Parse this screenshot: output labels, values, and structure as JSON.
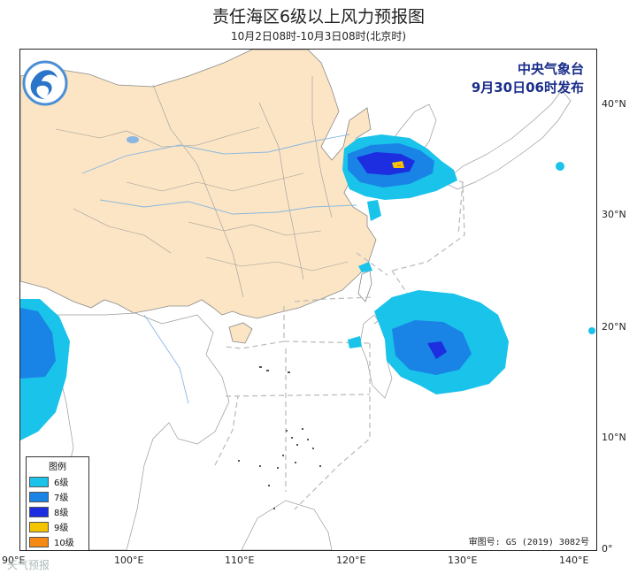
{
  "title": "责任海区6级以上风力预报图",
  "subtitle": "10月2日08时-10月3日08时(北京时)",
  "agency": {
    "name": "中央气象台",
    "issue_time": "9月30日06时发布"
  },
  "lat_ticks": [
    "40°N",
    "30°N",
    "20°N",
    "10°N",
    "0°"
  ],
  "lon_ticks": [
    "90°E",
    "100°E",
    "110°E",
    "120°E",
    "130°E",
    "140°E"
  ],
  "legend": {
    "title": "图例",
    "items": [
      {
        "label": "6级",
        "color": "#19c3ea"
      },
      {
        "label": "7级",
        "color": "#1a83e6"
      },
      {
        "label": "8级",
        "color": "#1c2ee0"
      },
      {
        "label": "9级",
        "color": "#f5c400"
      },
      {
        "label": "10级",
        "color": "#f48a14"
      }
    ]
  },
  "approval_number": "审图号: GS (2019) 3082号",
  "watermark": "天气预报",
  "colors": {
    "land_china": "#fbe5c4",
    "sea": "#ffffff",
    "boundary": "#8a8a8a",
    "river": "#8ab6e0",
    "zone_line": "#bdbdbd"
  }
}
